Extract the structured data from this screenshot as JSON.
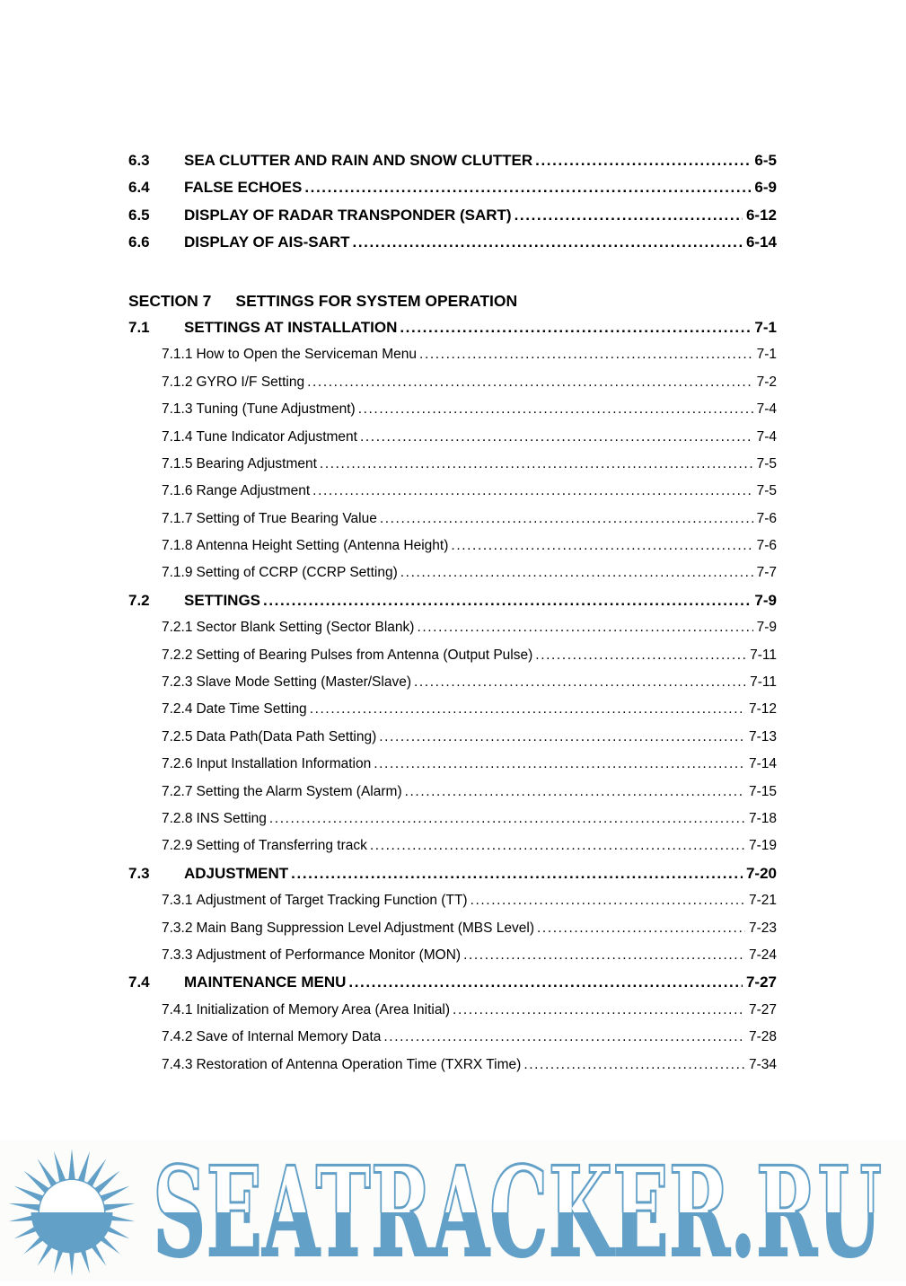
{
  "document": {
    "rows": [
      {
        "type": "entry1",
        "num": "6.3",
        "title": "SEA CLUTTER AND RAIN AND SNOW CLUTTER",
        "page": "6-5"
      },
      {
        "type": "entry1",
        "num": "6.4",
        "title": "FALSE ECHOES",
        "page": "6-9"
      },
      {
        "type": "entry1",
        "num": "6.5",
        "title": "DISPLAY OF RADAR TRANSPONDER (SART)",
        "page": "6-12"
      },
      {
        "type": "entry1",
        "num": "6.6",
        "title": "DISPLAY OF AIS-SART",
        "page": "6-14"
      },
      {
        "type": "section",
        "label": "SECTION 7",
        "title": "SETTINGS FOR SYSTEM OPERATION"
      },
      {
        "type": "entry1",
        "num": "7.1",
        "title": "SETTINGS AT INSTALLATION",
        "page": "7-1"
      },
      {
        "type": "entry2",
        "num": "7.1.1",
        "title": "How to Open the Serviceman Menu",
        "page": "7-1"
      },
      {
        "type": "entry2",
        "num": "7.1.2",
        "title": "GYRO I/F Setting",
        "page": "7-2"
      },
      {
        "type": "entry2",
        "num": "7.1.3",
        "title": "Tuning (Tune Adjustment)",
        "page": "7-4"
      },
      {
        "type": "entry2",
        "num": "7.1.4",
        "title": "Tune Indicator Adjustment",
        "page": "7-4"
      },
      {
        "type": "entry2",
        "num": "7.1.5",
        "title": "Bearing Adjustment",
        "page": "7-5"
      },
      {
        "type": "entry2",
        "num": "7.1.6",
        "title": "Range Adjustment",
        "page": "7-5"
      },
      {
        "type": "entry2",
        "num": "7.1.7",
        "title": "Setting of True Bearing Value",
        "page": "7-6"
      },
      {
        "type": "entry2",
        "num": "7.1.8",
        "title": "Antenna Height Setting (Antenna Height)",
        "page": "7-6"
      },
      {
        "type": "entry2",
        "num": "7.1.9",
        "title": "Setting of CCRP (CCRP Setting)",
        "page": "7-7"
      },
      {
        "type": "entry1",
        "num": "7.2",
        "title": "SETTINGS",
        "page": "7-9"
      },
      {
        "type": "entry2",
        "num": "7.2.1",
        "title": "Sector Blank Setting (Sector Blank)",
        "page": "7-9"
      },
      {
        "type": "entry2",
        "num": "7.2.2",
        "title": "Setting of Bearing Pulses from Antenna (Output Pulse)",
        "page": "7-11"
      },
      {
        "type": "entry2",
        "num": "7.2.3",
        "title": "Slave Mode Setting (Master/Slave)",
        "page": "7-11"
      },
      {
        "type": "entry2",
        "num": "7.2.4",
        "title": "Date Time Setting",
        "page": "7-12"
      },
      {
        "type": "entry2",
        "num": "7.2.5",
        "title": "Data Path(Data Path Setting)",
        "page": "7-13"
      },
      {
        "type": "entry2",
        "num": "7.2.6",
        "title": "Input Installation Information",
        "page": "7-14"
      },
      {
        "type": "entry2",
        "num": "7.2.7",
        "title": "Setting the Alarm System (Alarm)",
        "page": "7-15"
      },
      {
        "type": "entry2",
        "num": "7.2.8",
        "title": "INS Setting",
        "page": "7-18"
      },
      {
        "type": "entry2",
        "num": "7.2.9",
        "title": "Setting of Transferring track",
        "page": "7-19"
      },
      {
        "type": "entry1",
        "num": "7.3",
        "title": "ADJUSTMENT",
        "page": "7-20"
      },
      {
        "type": "entry2",
        "num": "7.3.1",
        "title": "Adjustment of Target Tracking Function (TT)",
        "page": "7-21"
      },
      {
        "type": "entry2",
        "num": "7.3.2",
        "title": "Main Bang Suppression Level Adjustment (MBS Level)",
        "page": "7-23"
      },
      {
        "type": "entry2",
        "num": "7.3.3",
        "title": "Adjustment of Performance Monitor (MON)",
        "page": "7-24"
      },
      {
        "type": "entry1",
        "num": "7.4",
        "title": "MAINTENANCE MENU",
        "page": "7-27"
      },
      {
        "type": "entry2",
        "num": "7.4.1",
        "title": "Initialization of Memory Area (Area Initial)",
        "page": "7-27"
      },
      {
        "type": "entry2",
        "num": "7.4.2",
        "title": "Save of Internal Memory Data",
        "page": "7-28"
      },
      {
        "type": "entry2",
        "num": "7.4.3",
        "title": "Restoration of Antenna Operation Time (TXRX Time)",
        "page": "7-34"
      }
    ]
  },
  "watermark": {
    "text": "SEATRACKER.RU",
    "color": "#63a0c8",
    "icon": "sun-icon"
  }
}
